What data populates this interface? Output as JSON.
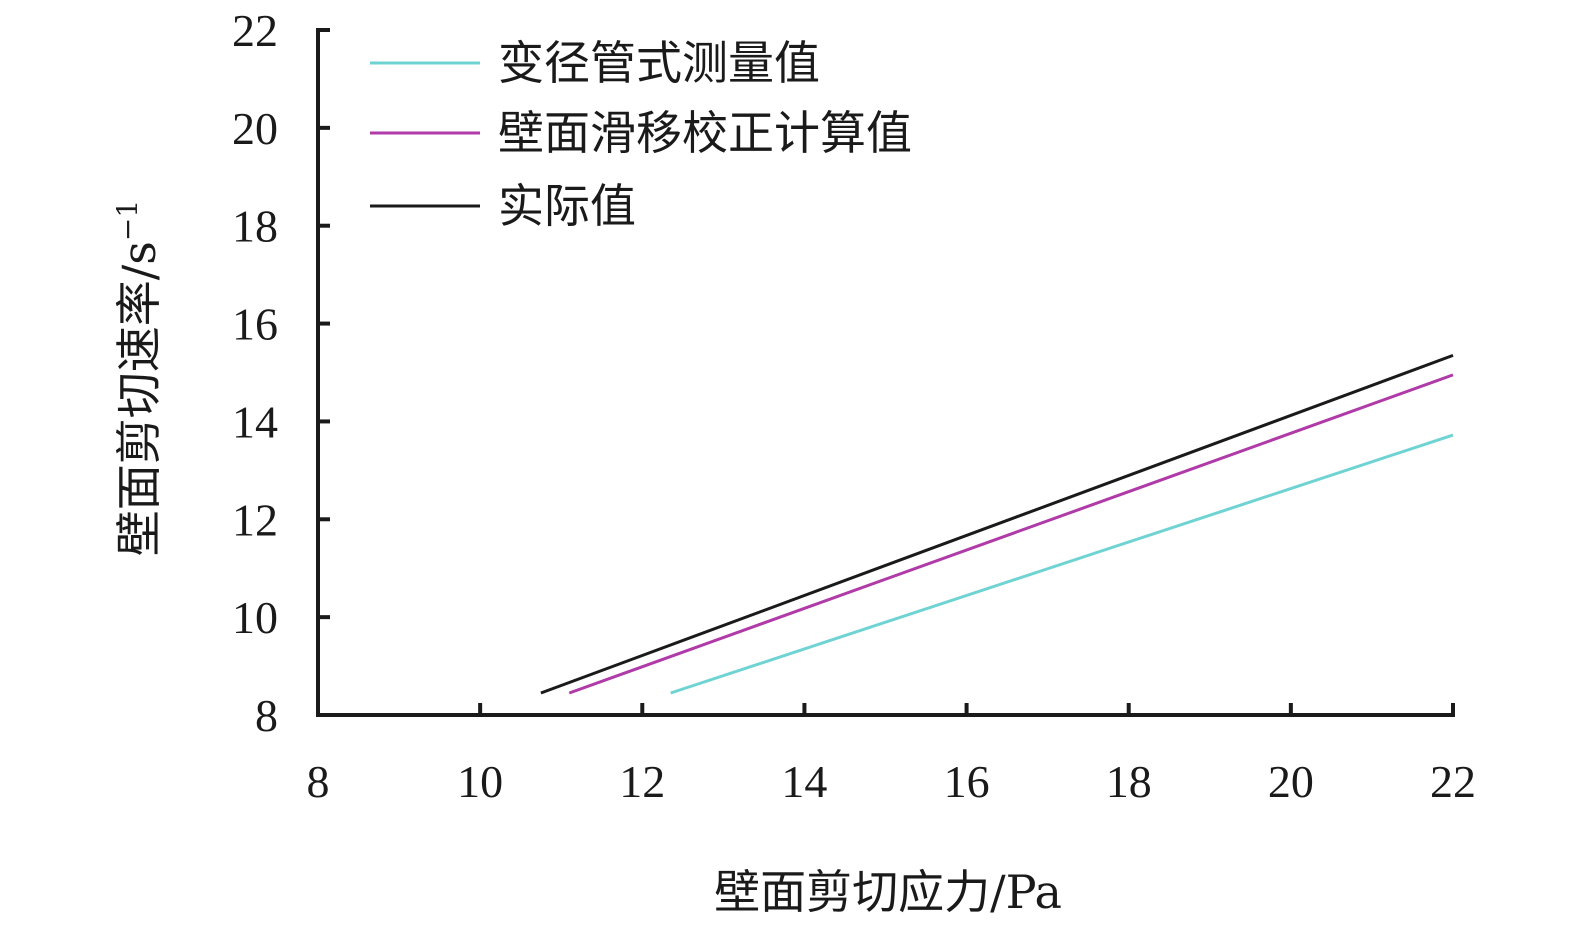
{
  "chart_data": {
    "type": "line",
    "xlabel": "壁面剪切应力/Pa",
    "ylabel": "壁面剪切速率/s",
    "ylabel_sup": "−1",
    "xlim": [
      8,
      22
    ],
    "ylim": [
      8,
      22
    ],
    "xticks": [
      8,
      10,
      12,
      14,
      16,
      18,
      20,
      22
    ],
    "yticks": [
      8,
      10,
      12,
      14,
      16,
      18,
      20,
      22
    ],
    "grid": false,
    "legend_position": "top-left",
    "series": [
      {
        "name": "变径管式测量值",
        "color": "#6fd3d3",
        "points": [
          [
            12.35,
            8.45
          ],
          [
            22.0,
            13.72
          ]
        ]
      },
      {
        "name": "壁面滑移校正计算值",
        "color": "#b03aa8",
        "points": [
          [
            11.1,
            8.45
          ],
          [
            22.0,
            14.95
          ]
        ]
      },
      {
        "name": "实际值",
        "color": "#1a1a1a",
        "points": [
          [
            10.75,
            8.45
          ],
          [
            22.0,
            15.35
          ]
        ]
      }
    ]
  }
}
